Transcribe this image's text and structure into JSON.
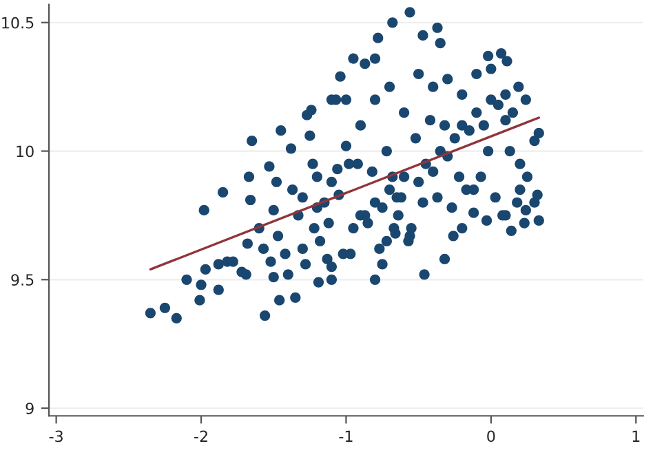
{
  "chart_data": {
    "type": "scatter",
    "xlim": [
      -3.05,
      1.05
    ],
    "ylim": [
      8.97,
      10.57
    ],
    "xticks": [
      {
        "value": -3,
        "label": "-3"
      },
      {
        "value": -2,
        "label": "-2"
      },
      {
        "value": -1,
        "label": "-1"
      },
      0,
      1
    ],
    "yticks": [
      9,
      9.5,
      10,
      10.5
    ],
    "grid": "y",
    "series": [
      {
        "color": "#1a476f",
        "marker": "circle",
        "x": [
          -2.35,
          -2.25,
          -2.17,
          -2.1,
          -2.0,
          -2.01,
          -1.98,
          -1.97,
          -1.88,
          -1.85,
          -1.88,
          -1.82,
          -1.78,
          -1.72,
          -1.69,
          -1.68,
          -1.66,
          -1.65,
          -1.67,
          -1.6,
          -1.57,
          -1.56,
          -1.53,
          -1.52,
          -1.5,
          -1.5,
          -1.48,
          -1.47,
          -1.46,
          -1.45,
          -1.42,
          -1.4,
          -1.38,
          -1.37,
          -1.35,
          -1.33,
          -1.3,
          -1.28,
          -1.27,
          -1.25,
          -1.24,
          -1.23,
          -1.22,
          -1.2,
          -1.18,
          -1.15,
          -1.13,
          -1.12,
          -1.1,
          -1.1,
          -1.07,
          -1.06,
          -1.05,
          -1.02,
          -1.0,
          -0.98,
          -0.56,
          -0.68,
          -0.37,
          -0.47,
          -0.35,
          -0.78,
          -0.95,
          -0.87,
          -0.8,
          -1.04,
          -0.02,
          0.07,
          0.11,
          0.19,
          0.24,
          0.33,
          0.3,
          0.33,
          0.32,
          0.24,
          0.14,
          0.1,
          -0.03,
          -0.12,
          -0.2,
          -0.26,
          -0.32,
          -0.46,
          -0.8,
          -0.75,
          -0.56,
          -0.66,
          -1.19,
          -1.1,
          -0.95,
          -0.9,
          -0.85,
          -0.8,
          -0.75,
          -0.7,
          -0.65,
          -0.6,
          -0.55,
          -0.5,
          -0.45,
          -0.4,
          -0.35,
          -0.3,
          -0.25,
          -0.2,
          -0.15,
          -0.1,
          -0.05,
          0.0,
          0.05,
          0.1,
          0.15,
          0.2,
          0.25,
          -0.92,
          -0.82,
          -0.72,
          -0.62,
          -0.52,
          -0.42,
          -0.32,
          -0.22,
          -0.12,
          -0.02,
          0.08,
          0.18,
          -0.97,
          -0.87,
          -0.77,
          -0.67,
          -0.57,
          -0.47,
          -0.37,
          -0.27,
          -0.17,
          -0.07,
          0.03,
          0.13,
          0.23,
          -1.3,
          -1.2,
          -1.1,
          -1.0,
          -0.9,
          -0.8,
          -0.7,
          -0.6,
          -0.5,
          -0.4,
          -0.3,
          -0.2,
          -0.1,
          0.0,
          0.1,
          0.2,
          0.3,
          -0.72,
          -0.68,
          -0.64
        ],
        "values": [
          9.37,
          9.39,
          9.35,
          9.5,
          9.48,
          9.42,
          9.77,
          9.54,
          9.46,
          9.84,
          9.56,
          9.57,
          9.57,
          9.53,
          9.52,
          9.64,
          9.81,
          10.04,
          9.9,
          9.7,
          9.62,
          9.36,
          9.94,
          9.57,
          9.51,
          9.77,
          9.88,
          9.67,
          9.42,
          10.08,
          9.6,
          9.52,
          10.01,
          9.85,
          9.43,
          9.75,
          9.62,
          9.56,
          10.14,
          10.06,
          10.16,
          9.95,
          9.7,
          9.9,
          9.65,
          9.8,
          9.58,
          9.72,
          9.5,
          10.2,
          10.2,
          9.93,
          9.83,
          9.6,
          10.2,
          9.95,
          10.54,
          10.5,
          10.48,
          10.45,
          10.42,
          10.44,
          10.36,
          10.34,
          10.36,
          10.29,
          10.37,
          10.38,
          10.35,
          10.25,
          10.2,
          10.07,
          10.04,
          9.73,
          9.83,
          9.77,
          9.69,
          9.75,
          9.73,
          9.76,
          9.7,
          9.67,
          9.58,
          9.52,
          9.5,
          9.56,
          9.67,
          9.68,
          9.49,
          9.55,
          9.7,
          9.75,
          9.72,
          9.8,
          9.78,
          9.85,
          9.82,
          9.9,
          9.7,
          9.88,
          9.95,
          9.92,
          10.0,
          9.98,
          10.05,
          10.1,
          10.08,
          10.15,
          10.1,
          10.2,
          10.18,
          10.22,
          10.15,
          9.85,
          9.9,
          9.95,
          9.92,
          10.0,
          9.82,
          10.05,
          10.12,
          10.1,
          9.9,
          9.85,
          10.0,
          9.75,
          9.8,
          9.6,
          9.75,
          9.62,
          9.7,
          9.65,
          9.8,
          9.82,
          9.78,
          9.85,
          9.9,
          9.82,
          10.0,
          9.72,
          9.82,
          9.78,
          9.88,
          10.02,
          10.1,
          10.2,
          10.25,
          10.15,
          10.3,
          10.25,
          10.28,
          10.22,
          10.3,
          10.32,
          10.12,
          9.95,
          9.8,
          9.65,
          9.9,
          9.75
        ]
      },
      {
        "type": "line",
        "marker": "none",
        "color": "#90353b",
        "x": [
          -2.35,
          0.33
        ],
        "values": [
          9.54,
          10.13
        ]
      }
    ]
  }
}
